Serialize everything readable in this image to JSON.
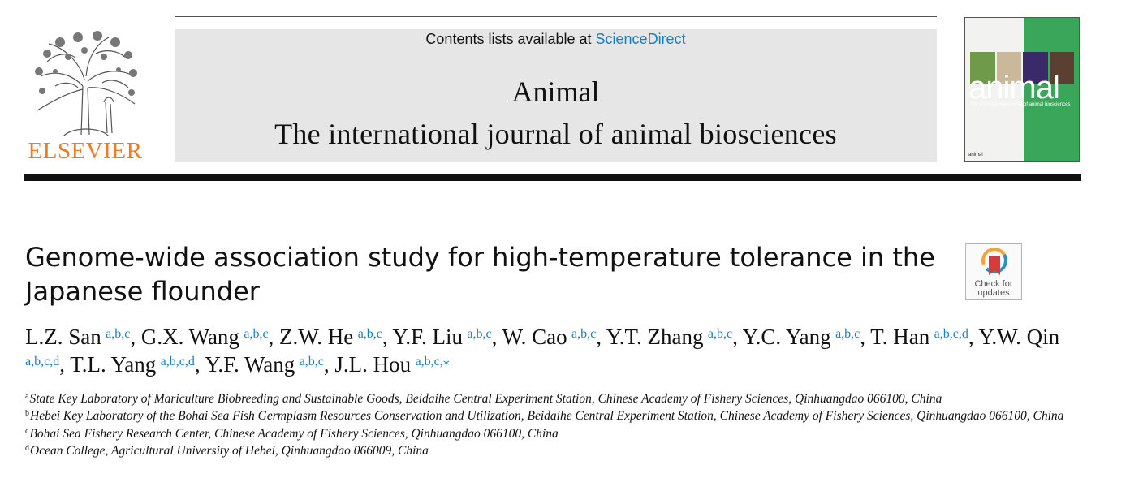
{
  "header": {
    "contents_prefix": "Contents lists available at ",
    "contents_link": "ScienceDirect",
    "journal_name": "Animal",
    "journal_subtitle": "The international journal of animal biosciences"
  },
  "publisher": {
    "name": "ELSEVIER",
    "brand_color": "#f07c22"
  },
  "cover": {
    "title": "animal",
    "tagline": "The international journal of animal biosciences",
    "footer": "animal"
  },
  "article": {
    "title": "Genome-wide association study for high-temperature tolerance in the Japanese flounder",
    "check_updates": "Check for updates"
  },
  "authors": [
    {
      "name": "L.Z. San",
      "sup": "a,b,c",
      "sep": ", "
    },
    {
      "name": "G.X. Wang",
      "sup": "a,b,c",
      "sep": ", "
    },
    {
      "name": "Z.W. He",
      "sup": "a,b,c",
      "sep": ", "
    },
    {
      "name": "Y.F. Liu",
      "sup": "a,b,c",
      "sep": ", "
    },
    {
      "name": "W. Cao",
      "sup": "a,b,c",
      "sep": ", "
    },
    {
      "name": "Y.T. Zhang",
      "sup": "a,b,c",
      "sep": ", "
    },
    {
      "name": "Y.C. Yang",
      "sup": "a,b,c",
      "sep": ", "
    },
    {
      "name": "T. Han",
      "sup": "a,b,c,d",
      "sep": ", "
    },
    {
      "name": "Y.W. Qin",
      "sup": "a,b,c,d",
      "sep": ", "
    },
    {
      "name": "T.L. Yang",
      "sup": "a,b,c,d",
      "sep": ", "
    },
    {
      "name": "Y.F. Wang",
      "sup": "a,b,c",
      "sep": ", "
    },
    {
      "name": "J.L. Hou",
      "sup": "a,b,c,⁎",
      "sep": ""
    }
  ],
  "affiliations": [
    {
      "label": "a",
      "text": "State Key Laboratory of Mariculture Biobreeding and Sustainable Goods, Beidaihe Central Experiment Station, Chinese Academy of Fishery Sciences, Qinhuangdao 066100, China"
    },
    {
      "label": "b",
      "text": "Hebei Key Laboratory of the Bohai Sea Fish Germplasm Resources Conservation and Utilization, Beidaihe Central Experiment Station, Chinese Academy of Fishery Sciences, Qinhuangdao 066100, China"
    },
    {
      "label": "c",
      "text": "Bohai Sea Fishery Research Center, Chinese Academy of Fishery Sciences, Qinhuangdao 066100, China"
    },
    {
      "label": "d",
      "text": "Ocean College, Agricultural University of Hebei, Qinhuangdao 066009, China"
    }
  ],
  "colors": {
    "link": "#1a80bb",
    "masthead_bg": "#e6e6e6",
    "cover_green": "#3aa65a"
  }
}
